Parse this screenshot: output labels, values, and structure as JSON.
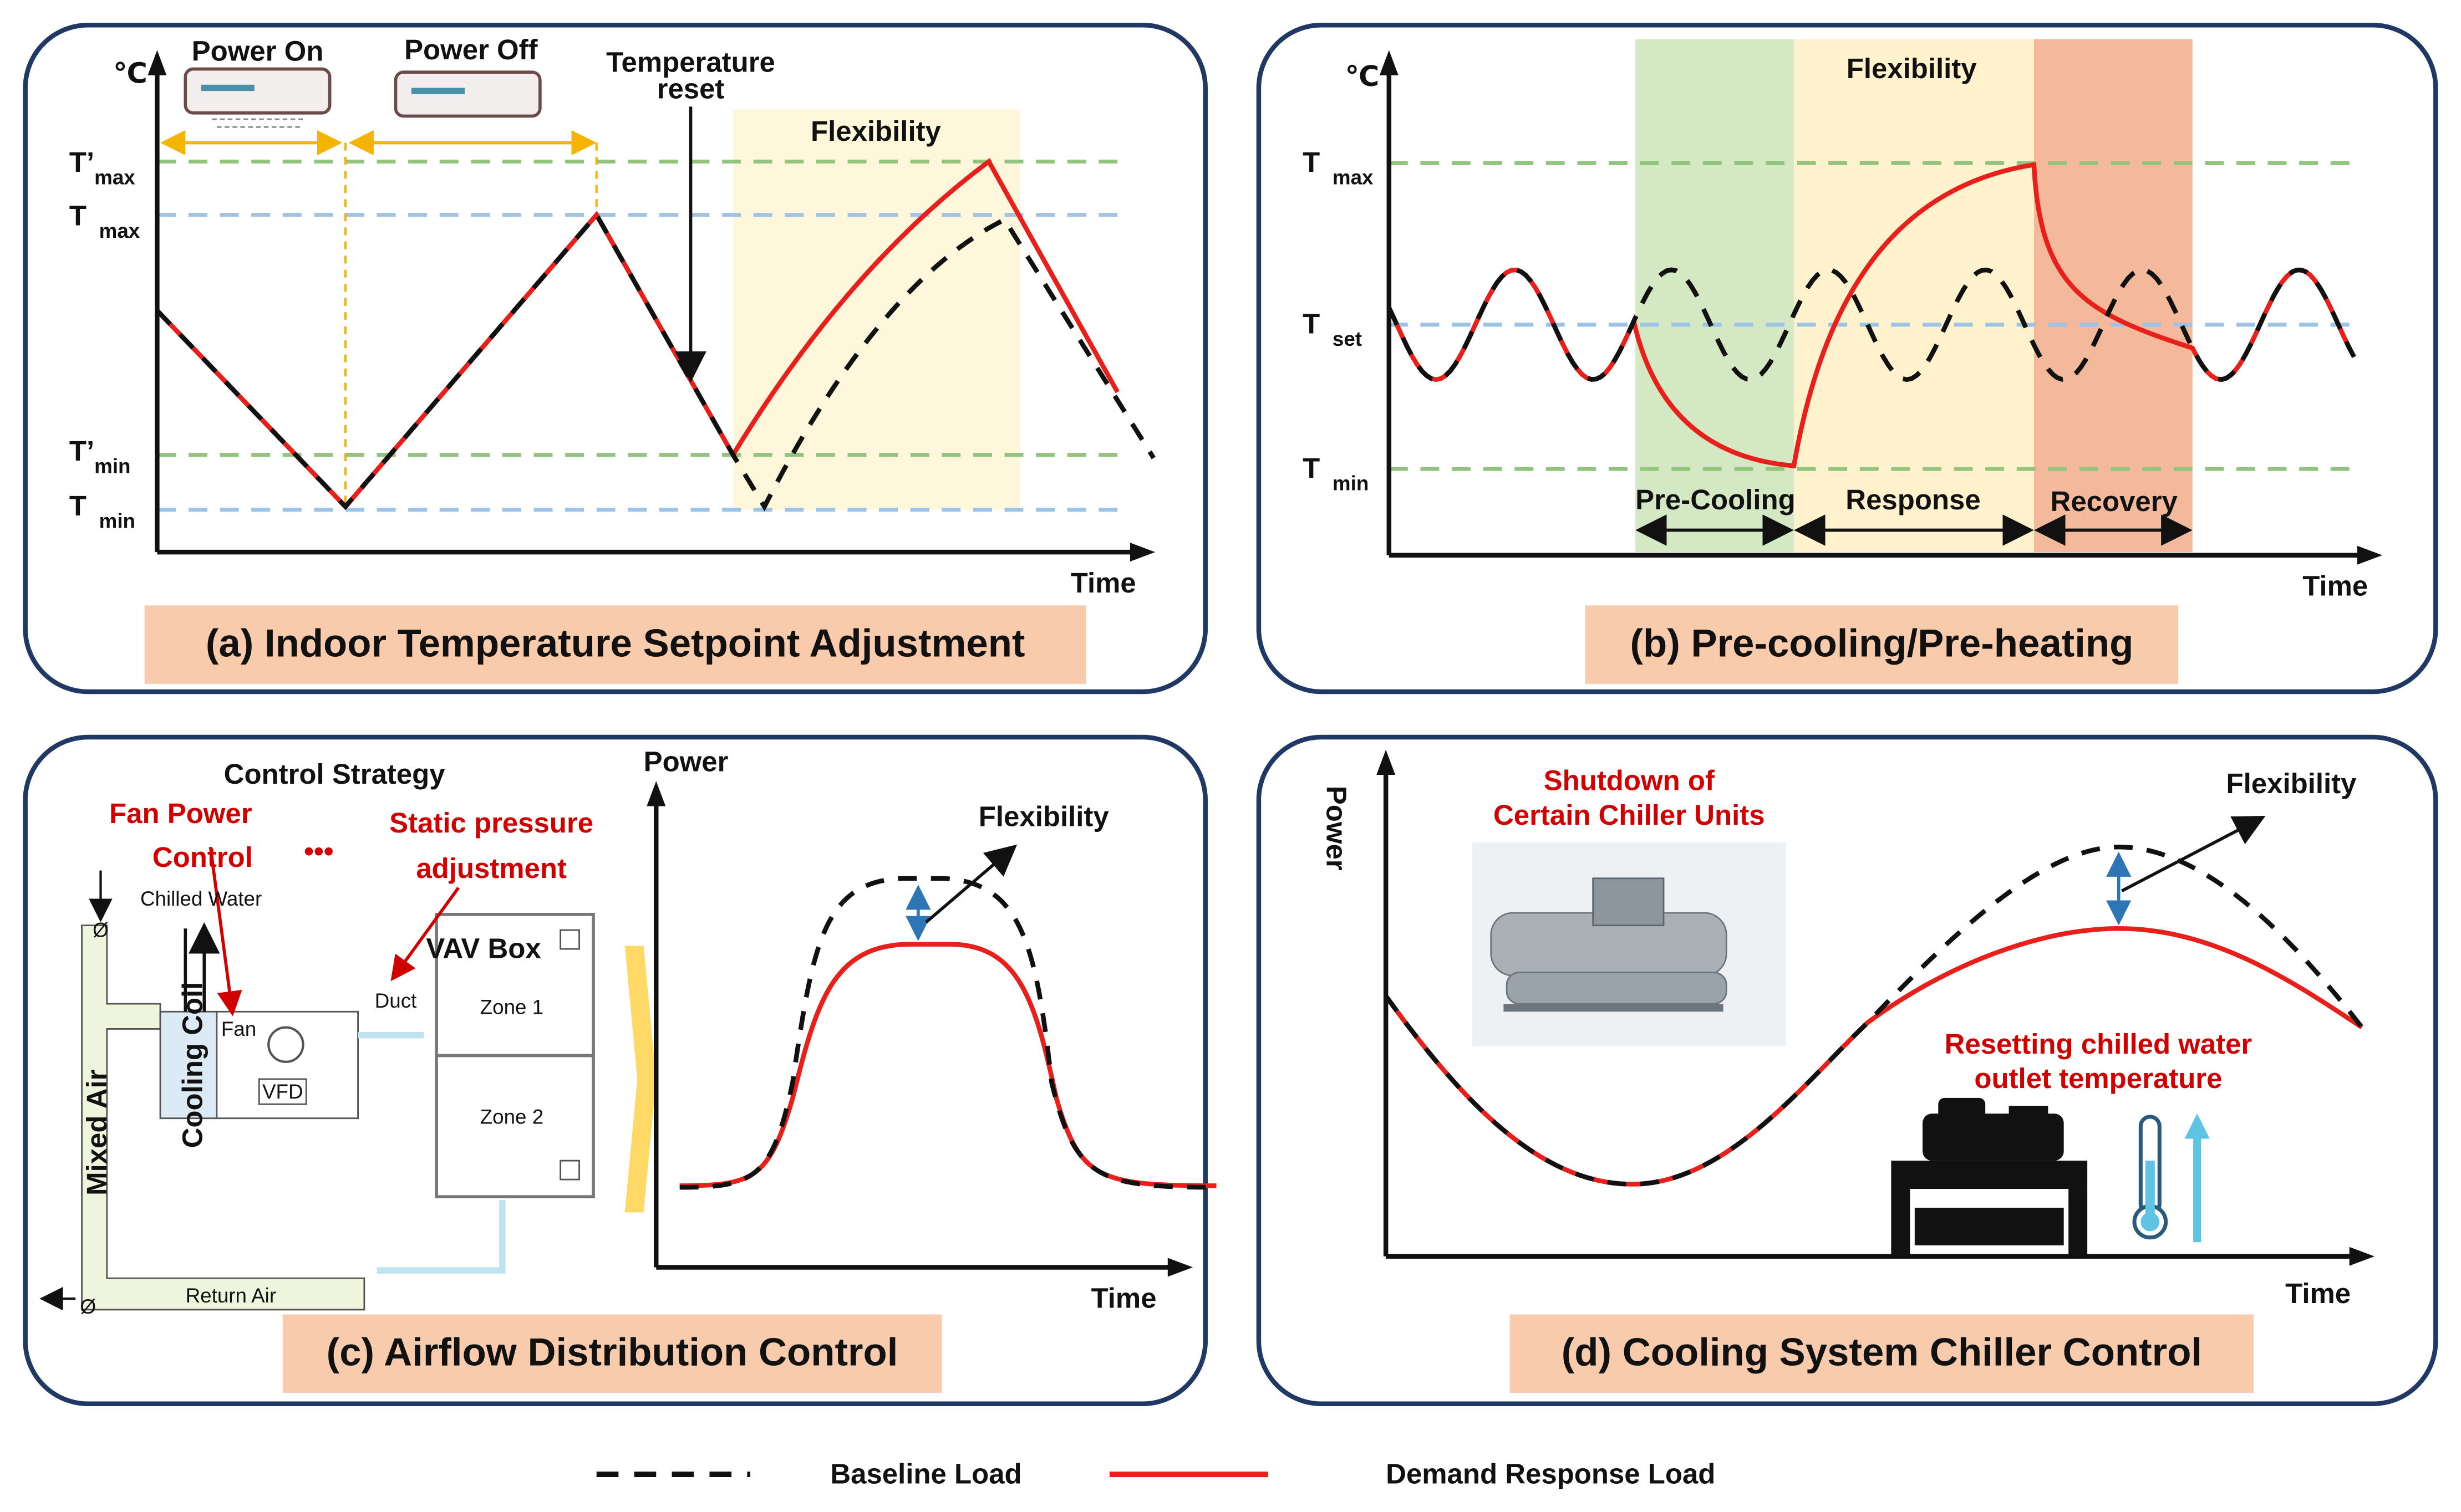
{
  "panels": [
    {
      "caption": "(a) Indoor Temperature Setpoint Adjustment",
      "y_unit": "℃",
      "x_label": "Time",
      "power_on": "Power On",
      "power_off": "Power Off",
      "temperature_reset": [
        "Temperature",
        "reset"
      ],
      "flexibility": "Flexibility",
      "levels": [
        {
          "symbol": "T’",
          "sub": "max"
        },
        {
          "symbol": "T",
          "sub": "max"
        },
        {
          "symbol": "T’",
          "sub": "min"
        },
        {
          "symbol": "T",
          "sub": "min"
        }
      ]
    },
    {
      "caption": "(b) Pre-cooling/Pre-heating",
      "y_unit": "℃",
      "x_label": "Time",
      "flexibility": "Flexibility",
      "levels": [
        {
          "symbol": "T",
          "sub": "max"
        },
        {
          "symbol": "T",
          "sub": "set"
        },
        {
          "symbol": "T",
          "sub": "min"
        }
      ],
      "phases": [
        "Pre-Cooling",
        "Response",
        "Recovery"
      ]
    },
    {
      "caption": "(c) Airflow Distribution Control",
      "y_label": "Power",
      "x_label": "Time",
      "flexibility": "Flexibility",
      "control_strategy": "Control Strategy",
      "fan_power_control": [
        "Fan Power",
        "Control"
      ],
      "ellipsis": "•••",
      "static_pressure": [
        "Static pressure",
        "adjustment"
      ],
      "chilled_water": "Chilled Water",
      "fan": "Fan",
      "cooling_coil": "Cooling Coil",
      "vfd": "VFD",
      "mixed_air": "Mixed Air",
      "return_air": "Return Air",
      "duct": "Duct",
      "vav_box": "VAV Box",
      "zone_1": "Zone 1",
      "zone_2": "Zone 2",
      "damper": "Ø"
    },
    {
      "caption": "(d) Cooling System Chiller Control",
      "y_label": "Power",
      "x_label": "Time",
      "flexibility": "Flexibility",
      "shutdown": [
        "Shutdown of",
        "Certain Chiller Units"
      ],
      "resetting": [
        "Resetting chilled water",
        "outlet temperature"
      ]
    }
  ],
  "legend": {
    "baseline": "Baseline Load",
    "response": "Demand Response Load"
  }
}
